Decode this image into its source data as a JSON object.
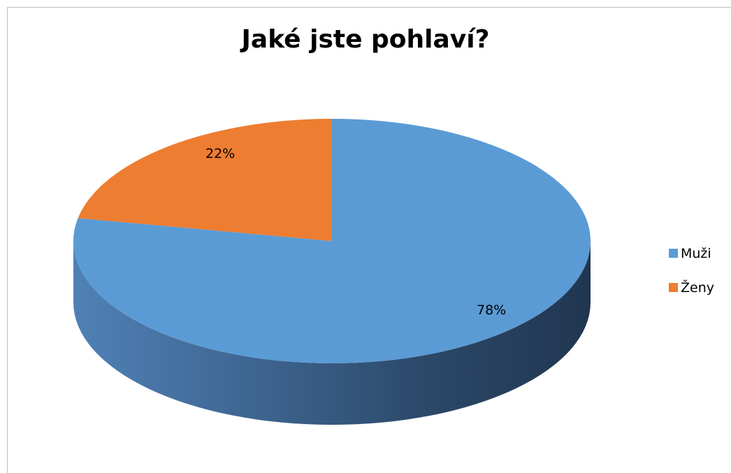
{
  "chart_data": {
    "type": "pie",
    "style": "3d",
    "title": "Jaké jste pohlaví?",
    "categories": [
      "Muži",
      "Ženy"
    ],
    "values": [
      78,
      22
    ],
    "data_labels": [
      "78%",
      "22%"
    ],
    "colors": [
      "#5b9bd5",
      "#ed7d31"
    ],
    "legend_position": "right"
  }
}
